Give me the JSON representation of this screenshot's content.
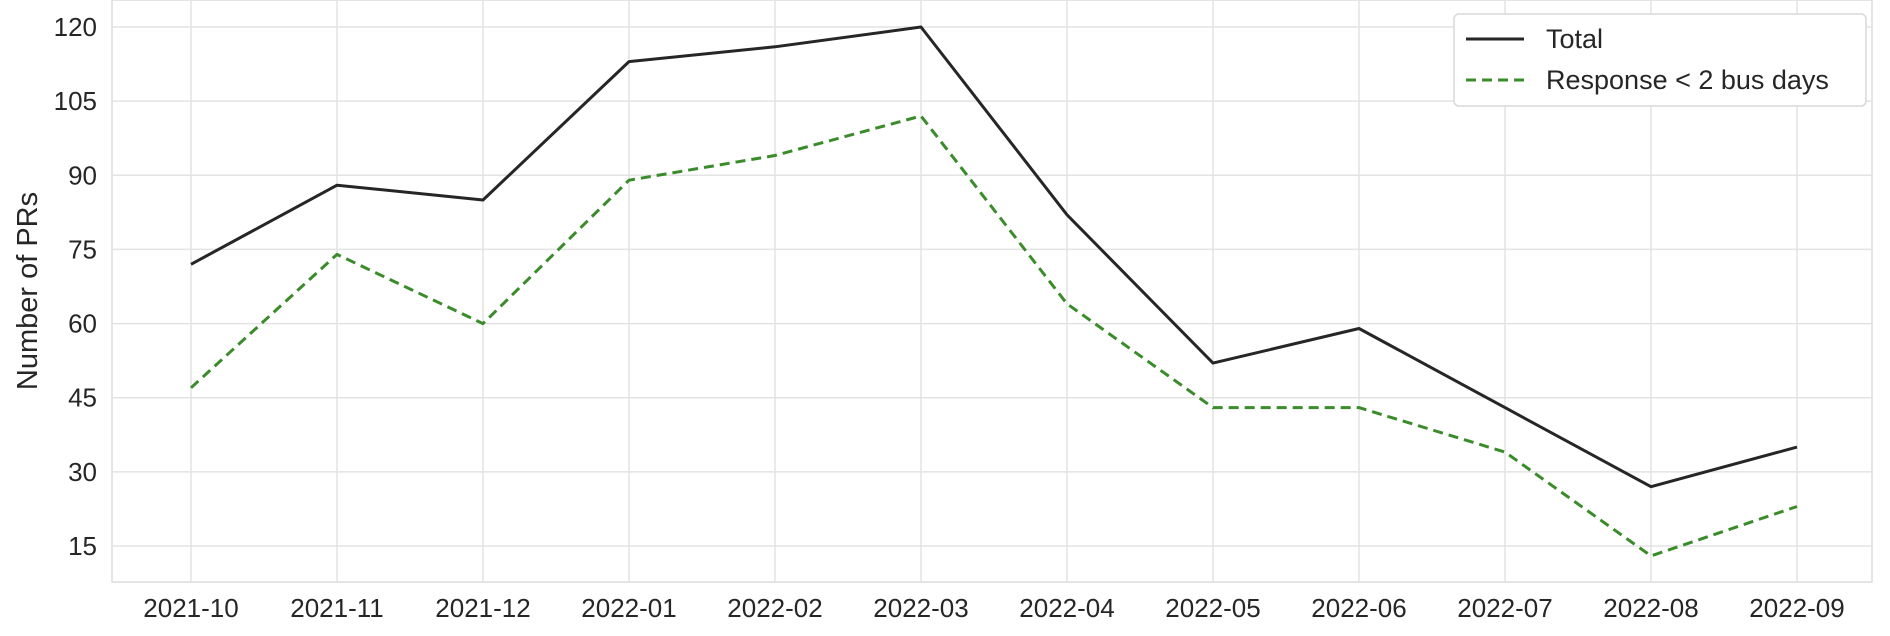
{
  "chart_data": {
    "type": "line",
    "title": "",
    "xlabel": "",
    "ylabel": "Number of PRs",
    "categories": [
      "2021-10",
      "2021-11",
      "2021-12",
      "2022-01",
      "2022-02",
      "2022-03",
      "2022-04",
      "2022-05",
      "2022-06",
      "2022-07",
      "2022-08",
      "2022-09"
    ],
    "yticks": [
      15,
      30,
      45,
      60,
      75,
      90,
      105,
      120
    ],
    "ylim": [
      7.5,
      125
    ],
    "grid": true,
    "legend_position": "top-right",
    "series": [
      {
        "name": "Total",
        "color": "#262626",
        "style": "solid",
        "values": [
          72,
          88,
          85,
          113,
          116,
          120,
          82,
          52,
          59,
          43,
          27,
          35
        ]
      },
      {
        "name": "Response < 2 bus days",
        "color": "#3a8c2a",
        "style": "dashed",
        "values": [
          47,
          74,
          60,
          89,
          94,
          102,
          64,
          43,
          43,
          34,
          13,
          23
        ]
      }
    ]
  }
}
